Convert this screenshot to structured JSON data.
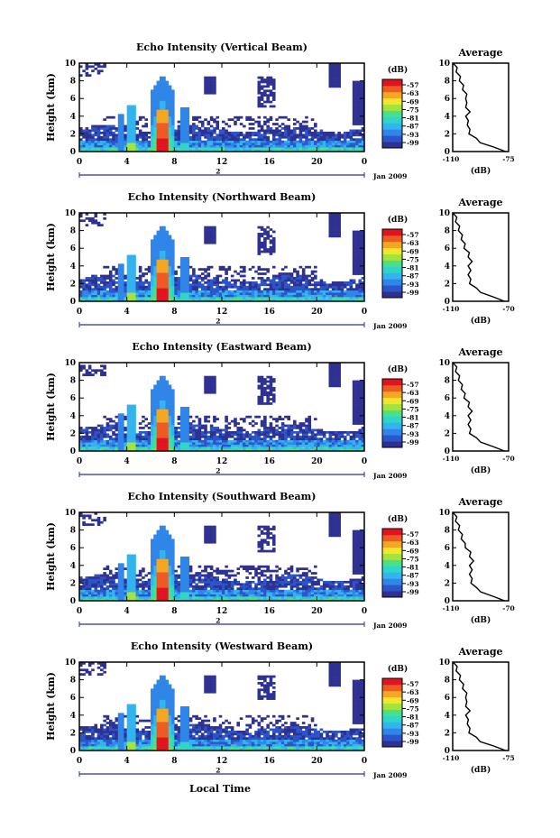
{
  "figure": {
    "month_label": "Jan 2009",
    "day_label": "2",
    "xlabel": "Local Time",
    "ylabel": "Height (km)",
    "unit_label": "(dB)",
    "avg_title": "Average",
    "avg_xlabel": "(dB)",
    "avg_xticks": [
      "-110",
      "-75"
    ],
    "colorbar_ticks": [
      "-57",
      "-63",
      "-69",
      "-75",
      "-81",
      "-87",
      "-93",
      "-99"
    ],
    "colors": {
      "scale": [
        "#2e3192",
        "#2b55c8",
        "#2f86e8",
        "#31b4f0",
        "#2fd6c8",
        "#49e08a",
        "#a4e33c",
        "#f2e62d",
        "#f5a623",
        "#ee5a24",
        "#e0141e"
      ]
    }
  },
  "chart_data": [
    {
      "type": "heatmap",
      "title": "Echo Intensity (Vertical Beam)",
      "xlabel": "Local Time",
      "ylabel": "Height (km)",
      "xlim": [
        0,
        24
      ],
      "ylim": [
        0,
        10
      ],
      "xticks": [
        "0",
        "4",
        "8",
        "12",
        "16",
        "20",
        "0"
      ],
      "yticks": [
        "0",
        "2",
        "4",
        "6",
        "8",
        "10"
      ],
      "colorbar_range_db": [
        -99,
        -57
      ],
      "average_profile": {
        "xlabel": "(dB)",
        "xlim": [
          -110,
          -75
        ],
        "ylim": [
          0,
          10
        ],
        "height_km": [
          0,
          0.5,
          1,
          1.5,
          2,
          2.5,
          3,
          3.5,
          4,
          4.5,
          5,
          5.5,
          6,
          6.5,
          7,
          7.5,
          8,
          8.5,
          9,
          9.5,
          10
        ],
        "db": [
          -76,
          -85,
          -92,
          -96,
          -99,
          -100,
          -100,
          -101,
          -101,
          -100,
          -101,
          -102,
          -101,
          -102,
          -103,
          -104,
          -105,
          -106,
          -107,
          -108,
          -109
        ]
      }
    },
    {
      "type": "heatmap",
      "title": "Echo Intensity (Northward Beam)",
      "xlabel": "Local Time",
      "ylabel": "Height (km)",
      "xlim": [
        0,
        24
      ],
      "ylim": [
        0,
        10
      ],
      "xticks": [
        "0",
        "4",
        "8",
        "12",
        "16",
        "20",
        "0"
      ],
      "yticks": [
        "0",
        "2",
        "4",
        "6",
        "8",
        "10"
      ],
      "colorbar_range_db": [
        -99,
        -57
      ],
      "average_profile": {
        "xlabel": "(dB)",
        "xlim": [
          -110,
          -70
        ],
        "ylim": [
          0,
          10
        ],
        "height_km": [
          0,
          0.5,
          1,
          1.5,
          2,
          2.5,
          3,
          3.5,
          4,
          4.5,
          5,
          5.5,
          6,
          6.5,
          7,
          7.5,
          8,
          8.5,
          9,
          9.5,
          10
        ],
        "db": [
          -72,
          -82,
          -89,
          -94,
          -97,
          -98,
          -98,
          -98,
          -98,
          -97,
          -98,
          -99,
          -101,
          -102,
          -103,
          -104,
          -105,
          -106,
          -107,
          -108,
          -109
        ]
      }
    },
    {
      "type": "heatmap",
      "title": "Echo Intensity (Eastward Beam)",
      "xlabel": "Local Time",
      "ylabel": "Height (km)",
      "xlim": [
        0,
        24
      ],
      "ylim": [
        0,
        10
      ],
      "xticks": [
        "0",
        "4",
        "8",
        "12",
        "16",
        "20",
        "0"
      ],
      "yticks": [
        "0",
        "2",
        "4",
        "6",
        "8",
        "10"
      ],
      "colorbar_range_db": [
        -99,
        -57
      ],
      "average_profile": {
        "xlabel": "(dB)",
        "xlim": [
          -110,
          -70
        ],
        "ylim": [
          0,
          10
        ],
        "height_km": [
          0,
          0.5,
          1,
          1.5,
          2,
          2.5,
          3,
          3.5,
          4,
          4.5,
          5,
          5.5,
          6,
          6.5,
          7,
          7.5,
          8,
          8.5,
          9,
          9.5,
          10
        ],
        "db": [
          -72,
          -82,
          -89,
          -94,
          -97,
          -98,
          -98,
          -98,
          -98,
          -97,
          -98,
          -99,
          -101,
          -102,
          -103,
          -104,
          -105,
          -106,
          -107,
          -108,
          -109
        ]
      }
    },
    {
      "type": "heatmap",
      "title": "Echo Intensity (Southward Beam)",
      "xlabel": "Local Time",
      "ylabel": "Height (km)",
      "xlim": [
        0,
        24
      ],
      "ylim": [
        0,
        10
      ],
      "xticks": [
        "0",
        "4",
        "8",
        "12",
        "16",
        "20",
        "0"
      ],
      "yticks": [
        "0",
        "2",
        "4",
        "6",
        "8",
        "10"
      ],
      "colorbar_range_db": [
        -99,
        -57
      ],
      "average_profile": {
        "xlabel": "(dB)",
        "xlim": [
          -110,
          -70
        ],
        "ylim": [
          0,
          10
        ],
        "height_km": [
          0,
          0.5,
          1,
          1.5,
          2,
          2.5,
          3,
          3.5,
          4,
          4.5,
          5,
          5.5,
          6,
          6.5,
          7,
          7.5,
          8,
          8.5,
          9,
          9.5,
          10
        ],
        "db": [
          -72,
          -82,
          -89,
          -94,
          -96,
          -97,
          -97,
          -97,
          -97,
          -96,
          -97,
          -98,
          -100,
          -102,
          -103,
          -104,
          -105,
          -106,
          -107,
          -108,
          -109
        ]
      }
    },
    {
      "type": "heatmap",
      "title": "Echo Intensity (Westward Beam)",
      "xlabel": "Local Time",
      "ylabel": "Height (km)",
      "xlim": [
        0,
        24
      ],
      "ylim": [
        0,
        10
      ],
      "xticks": [
        "0",
        "4",
        "8",
        "12",
        "16",
        "20",
        "0"
      ],
      "yticks": [
        "0",
        "2",
        "4",
        "6",
        "8",
        "10"
      ],
      "colorbar_range_db": [
        -99,
        -57
      ],
      "average_profile": {
        "xlabel": "(dB)",
        "xlim": [
          -110,
          -75
        ],
        "ylim": [
          0,
          10
        ],
        "height_km": [
          0,
          0.5,
          1,
          1.5,
          2,
          2.5,
          3,
          3.5,
          4,
          4.5,
          5,
          5.5,
          6,
          6.5,
          7,
          7.5,
          8,
          8.5,
          9,
          9.5,
          10
        ],
        "db": [
          -76,
          -85,
          -92,
          -96,
          -99,
          -100,
          -100,
          -101,
          -101,
          -100,
          -101,
          -102,
          -101,
          -102,
          -103,
          -104,
          -105,
          -106,
          -107,
          -108,
          -109
        ]
      }
    }
  ]
}
